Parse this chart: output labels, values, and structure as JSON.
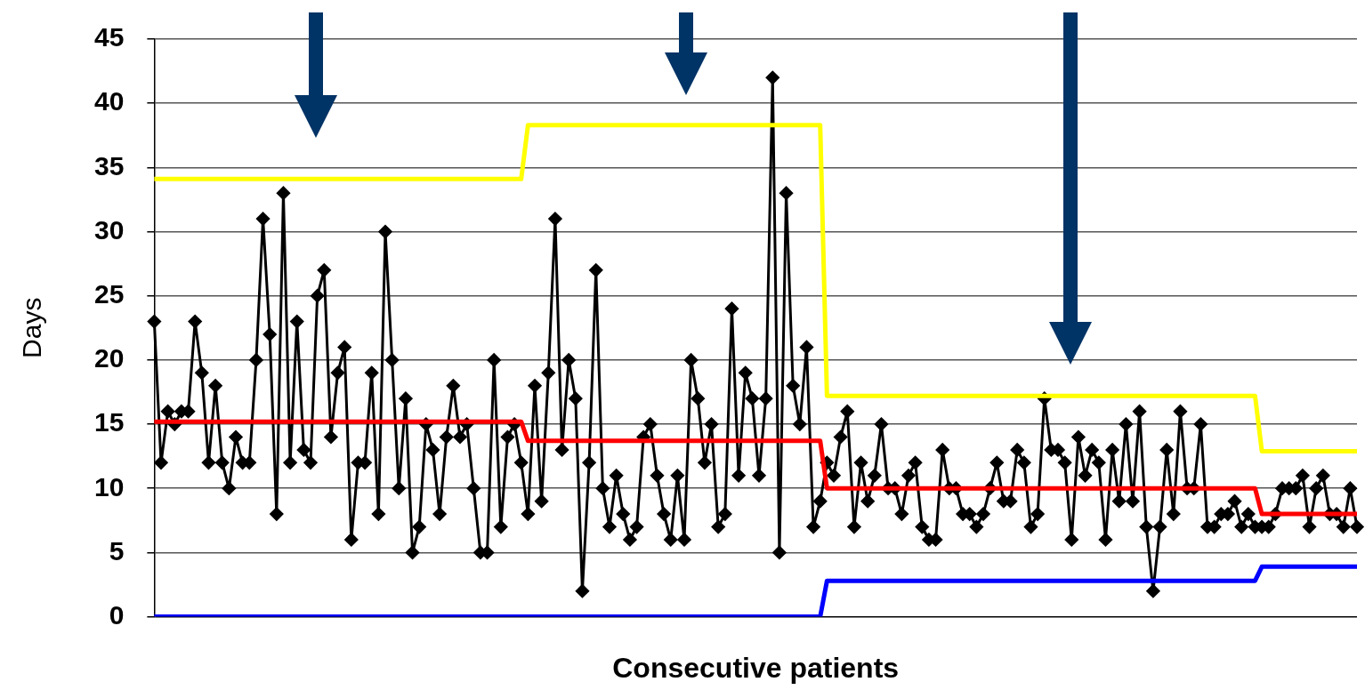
{
  "chart_data": {
    "type": "line",
    "xlabel": "Consecutive patients",
    "ylabel": "Days",
    "categories": [
      null,
      null,
      null,
      null,
      null,
      null,
      null,
      null,
      null,
      null,
      null,
      null,
      null,
      null,
      null,
      null,
      null,
      null,
      null,
      null,
      null,
      null,
      null,
      null,
      null,
      null,
      null,
      null,
      null,
      null,
      null,
      null,
      null,
      null,
      null,
      null,
      null,
      null,
      null,
      null,
      null,
      null,
      null,
      null,
      null,
      null,
      null,
      null,
      null,
      null,
      null,
      null,
      null,
      null,
      null,
      null,
      null,
      null,
      null,
      null,
      null,
      null,
      null,
      null,
      null,
      null,
      null,
      null,
      null,
      null,
      null,
      null,
      null,
      null,
      null,
      null,
      null,
      null,
      null,
      null,
      null,
      null,
      null,
      null,
      null,
      null,
      null,
      null,
      null,
      null,
      null,
      null,
      null,
      null,
      null,
      null,
      null,
      null,
      null,
      null,
      null,
      null,
      null,
      null,
      null,
      null,
      null,
      null,
      null,
      null,
      null,
      null,
      null,
      null,
      null,
      null,
      null,
      null,
      null,
      null,
      null,
      null,
      null,
      null,
      null,
      null,
      null,
      null,
      null,
      null,
      null,
      null,
      null,
      null,
      null,
      null,
      null,
      null,
      null,
      null,
      null,
      null,
      null,
      null,
      null,
      null,
      null,
      null,
      null,
      null,
      null,
      null,
      null,
      null,
      null,
      null,
      null,
      null,
      null,
      null,
      null,
      null,
      null,
      null,
      null,
      null,
      null,
      null,
      null,
      null,
      null,
      null,
      null,
      null,
      null,
      null,
      null,
      null
    ],
    "series": [
      {
        "color": "#ffff00",
        "marker": "none",
        "values": [
          34.1,
          34.1,
          34.1,
          34.1,
          34.1,
          34.1,
          34.1,
          34.1,
          34.1,
          34.1,
          34.1,
          34.1,
          34.1,
          34.1,
          34.1,
          34.1,
          34.1,
          34.1,
          34.1,
          34.1,
          34.1,
          34.1,
          34.1,
          34.1,
          34.1,
          34.1,
          34.1,
          34.1,
          34.1,
          34.1,
          34.1,
          34.1,
          34.1,
          34.1,
          34.1,
          34.1,
          34.1,
          34.1,
          34.1,
          34.1,
          34.1,
          34.1,
          34.1,
          34.1,
          34.1,
          34.1,
          34.1,
          34.1,
          34.1,
          34.1,
          34.1,
          34.1,
          34.1,
          34.1,
          34.1,
          38.3,
          38.3,
          38.3,
          38.3,
          38.3,
          38.3,
          38.3,
          38.3,
          38.3,
          38.3,
          38.3,
          38.3,
          38.3,
          38.3,
          38.3,
          38.3,
          38.3,
          38.3,
          38.3,
          38.3,
          38.3,
          38.3,
          38.3,
          38.3,
          38.3,
          38.3,
          38.3,
          38.3,
          38.3,
          38.3,
          38.3,
          38.3,
          38.3,
          38.3,
          38.3,
          38.3,
          38.3,
          38.3,
          38.3,
          38.3,
          38.3,
          38.3,
          38.3,
          38.3,
          17.2,
          17.2,
          17.2,
          17.2,
          17.2,
          17.2,
          17.2,
          17.2,
          17.2,
          17.2,
          17.2,
          17.2,
          17.2,
          17.2,
          17.2,
          17.2,
          17.2,
          17.2,
          17.2,
          17.2,
          17.2,
          17.2,
          17.2,
          17.2,
          17.2,
          17.2,
          17.2,
          17.2,
          17.2,
          17.2,
          17.2,
          17.2,
          17.2,
          17.2,
          17.2,
          17.2,
          17.2,
          17.2,
          17.2,
          17.2,
          17.2,
          17.2,
          17.2,
          17.2,
          17.2,
          17.2,
          17.2,
          17.2,
          17.2,
          17.2,
          17.2,
          17.2,
          17.2,
          17.2,
          17.2,
          17.2,
          17.2,
          17.2,
          17.2,
          17.2,
          17.2,
          17.2,
          17.2,
          17.2,
          12.9,
          12.9,
          12.9,
          12.9,
          12.9,
          12.9,
          12.9,
          12.9,
          12.9,
          12.9,
          12.9,
          12.9,
          12.9,
          12.9,
          12.9
        ]
      },
      {
        "color": "#ff0000",
        "marker": "none",
        "values": [
          15.2,
          15.2,
          15.2,
          15.2,
          15.2,
          15.2,
          15.2,
          15.2,
          15.2,
          15.2,
          15.2,
          15.2,
          15.2,
          15.2,
          15.2,
          15.2,
          15.2,
          15.2,
          15.2,
          15.2,
          15.2,
          15.2,
          15.2,
          15.2,
          15.2,
          15.2,
          15.2,
          15.2,
          15.2,
          15.2,
          15.2,
          15.2,
          15.2,
          15.2,
          15.2,
          15.2,
          15.2,
          15.2,
          15.2,
          15.2,
          15.2,
          15.2,
          15.2,
          15.2,
          15.2,
          15.2,
          15.2,
          15.2,
          15.2,
          15.2,
          15.2,
          15.2,
          15.2,
          15.2,
          15.2,
          13.7,
          13.7,
          13.7,
          13.7,
          13.7,
          13.7,
          13.7,
          13.7,
          13.7,
          13.7,
          13.7,
          13.7,
          13.7,
          13.7,
          13.7,
          13.7,
          13.7,
          13.7,
          13.7,
          13.7,
          13.7,
          13.7,
          13.7,
          13.7,
          13.7,
          13.7,
          13.7,
          13.7,
          13.7,
          13.7,
          13.7,
          13.7,
          13.7,
          13.7,
          13.7,
          13.7,
          13.7,
          13.7,
          13.7,
          13.7,
          13.7,
          13.7,
          13.7,
          13.7,
          10,
          10,
          10,
          10,
          10,
          10,
          10,
          10,
          10,
          10,
          10,
          10,
          10,
          10,
          10,
          10,
          10,
          10,
          10,
          10,
          10,
          10,
          10,
          10,
          10,
          10,
          10,
          10,
          10,
          10,
          10,
          10,
          10,
          10,
          10,
          10,
          10,
          10,
          10,
          10,
          10,
          10,
          10,
          10,
          10,
          10,
          10,
          10,
          10,
          10,
          10,
          10,
          10,
          10,
          10,
          10,
          10,
          10,
          10,
          10,
          10,
          10,
          10,
          10,
          8,
          8,
          8,
          8,
          8,
          8,
          8,
          8,
          8,
          8,
          8,
          8,
          8,
          8,
          8
        ]
      },
      {
        "color": "#0000ff",
        "marker": "none",
        "values": [
          0,
          0,
          0,
          0,
          0,
          0,
          0,
          0,
          0,
          0,
          0,
          0,
          0,
          0,
          0,
          0,
          0,
          0,
          0,
          0,
          0,
          0,
          0,
          0,
          0,
          0,
          0,
          0,
          0,
          0,
          0,
          0,
          0,
          0,
          0,
          0,
          0,
          0,
          0,
          0,
          0,
          0,
          0,
          0,
          0,
          0,
          0,
          0,
          0,
          0,
          0,
          0,
          0,
          0,
          0,
          0,
          0,
          0,
          0,
          0,
          0,
          0,
          0,
          0,
          0,
          0,
          0,
          0,
          0,
          0,
          0,
          0,
          0,
          0,
          0,
          0,
          0,
          0,
          0,
          0,
          0,
          0,
          0,
          0,
          0,
          0,
          0,
          0,
          0,
          0,
          0,
          0,
          0,
          0,
          0,
          0,
          0,
          0,
          0,
          2.8,
          2.8,
          2.8,
          2.8,
          2.8,
          2.8,
          2.8,
          2.8,
          2.8,
          2.8,
          2.8,
          2.8,
          2.8,
          2.8,
          2.8,
          2.8,
          2.8,
          2.8,
          2.8,
          2.8,
          2.8,
          2.8,
          2.8,
          2.8,
          2.8,
          2.8,
          2.8,
          2.8,
          2.8,
          2.8,
          2.8,
          2.8,
          2.8,
          2.8,
          2.8,
          2.8,
          2.8,
          2.8,
          2.8,
          2.8,
          2.8,
          2.8,
          2.8,
          2.8,
          2.8,
          2.8,
          2.8,
          2.8,
          2.8,
          2.8,
          2.8,
          2.8,
          2.8,
          2.8,
          2.8,
          2.8,
          2.8,
          2.8,
          2.8,
          2.8,
          2.8,
          2.8,
          2.8,
          2.8,
          3.9,
          3.9,
          3.9,
          3.9,
          3.9,
          3.9,
          3.9,
          3.9,
          3.9,
          3.9,
          3.9,
          3.9,
          3.9,
          3.9,
          3.9
        ]
      },
      {
        "color": "#000000",
        "marker": "diamond",
        "values": [
          23,
          12,
          16,
          15,
          16,
          16,
          23,
          19,
          12,
          18,
          12,
          10,
          14,
          12,
          12,
          20,
          31,
          22,
          8,
          33,
          12,
          23,
          13,
          12,
          25,
          27,
          14,
          19,
          21,
          6,
          12,
          12,
          19,
          8,
          30,
          20,
          10,
          17,
          5,
          7,
          15,
          13,
          8,
          14,
          18,
          14,
          15,
          10,
          5,
          5,
          20,
          7,
          14,
          15,
          12,
          8,
          18,
          9,
          19,
          31,
          13,
          20,
          17,
          2,
          12,
          27,
          10,
          7,
          11,
          8,
          6,
          7,
          14,
          15,
          11,
          8,
          6,
          11,
          6,
          20,
          17,
          12,
          15,
          7,
          8,
          24,
          11,
          19,
          17,
          11,
          17,
          42,
          5,
          33,
          18,
          15,
          21,
          7,
          9,
          12,
          11,
          14,
          16,
          7,
          12,
          9,
          11,
          15,
          10,
          10,
          8,
          11,
          12,
          7,
          6,
          6,
          13,
          10,
          10,
          8,
          8,
          7,
          8,
          10,
          12,
          9,
          9,
          13,
          12,
          7,
          8,
          17,
          13,
          13,
          12,
          6,
          14,
          11,
          13,
          12,
          6,
          13,
          9,
          15,
          9,
          16,
          7,
          2,
          7,
          13,
          8,
          16,
          10,
          10,
          15,
          7,
          7,
          8,
          8,
          9,
          7,
          8,
          7,
          7,
          7,
          8,
          10,
          10,
          10,
          11,
          7,
          10,
          11,
          8,
          8,
          7,
          10,
          7
        ]
      }
    ],
    "ylim": [
      0,
      45
    ],
    "yticks": [
      0,
      5,
      10,
      15,
      20,
      25,
      30,
      35,
      40,
      45
    ],
    "grid": "y",
    "tick_labels": "y",
    "legend": false
  }
}
